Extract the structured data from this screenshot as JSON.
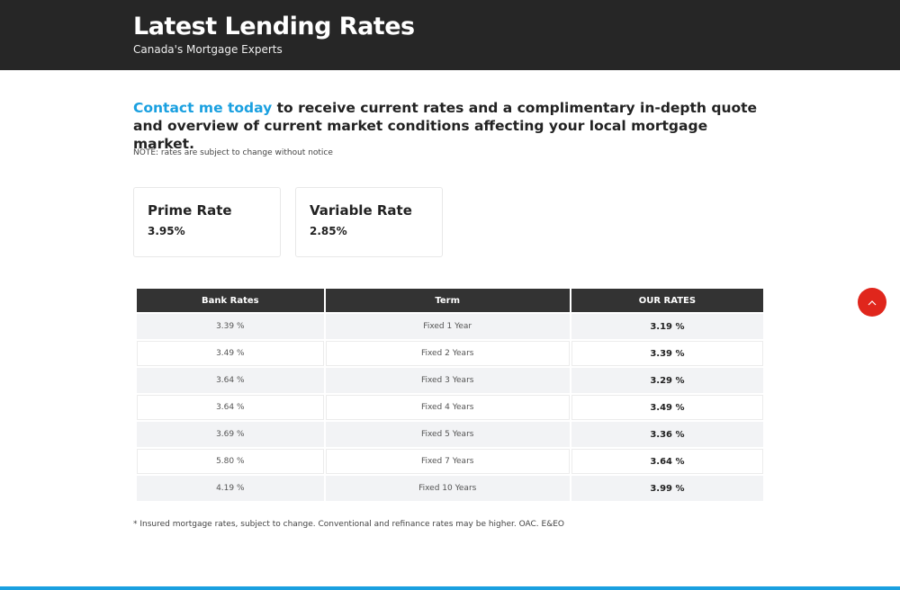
{
  "header": {
    "title": "Latest Lending Rates",
    "subtitle": "Canada's Mortgage Experts"
  },
  "intro": {
    "link_text": "Contact me today",
    "text": " to receive current rates and a complimentary in-depth quote and overview of current market conditions affecting your local mortgage market."
  },
  "note": "NOTE: rates are subject to change without notice",
  "cards": [
    {
      "title": "Prime Rate",
      "value": "3.95%"
    },
    {
      "title": "Variable Rate",
      "value": "2.85%"
    }
  ],
  "table": {
    "headers": [
      "Bank Rates",
      "Term",
      "OUR RATES"
    ],
    "rows": [
      {
        "bank": "3.39 %",
        "term": "Fixed 1 Year",
        "ours": "3.19 %"
      },
      {
        "bank": "3.49 %",
        "term": "Fixed 2 Years",
        "ours": "3.39 %"
      },
      {
        "bank": "3.64 %",
        "term": "Fixed 3 Years",
        "ours": "3.29 %"
      },
      {
        "bank": "3.64 %",
        "term": "Fixed 4 Years",
        "ours": "3.49 %"
      },
      {
        "bank": "3.69 %",
        "term": "Fixed 5 Years",
        "ours": "3.36 %"
      },
      {
        "bank": "5.80 %",
        "term": "Fixed 7 Years",
        "ours": "3.64 %"
      },
      {
        "bank": "4.19 %",
        "term": "Fixed 10 Years",
        "ours": "3.99 %"
      }
    ]
  },
  "footnote": "* Insured mortgage rates, subject to change. Conventional and refinance rates may be higher. OAC. E&EO",
  "scroll_top": {
    "icon": "chevron-up-icon"
  },
  "colors": {
    "header_bg": "#262626",
    "accent": "#1aa0e0",
    "scroll_button": "#e0261c",
    "table_header_bg": "#333333"
  }
}
